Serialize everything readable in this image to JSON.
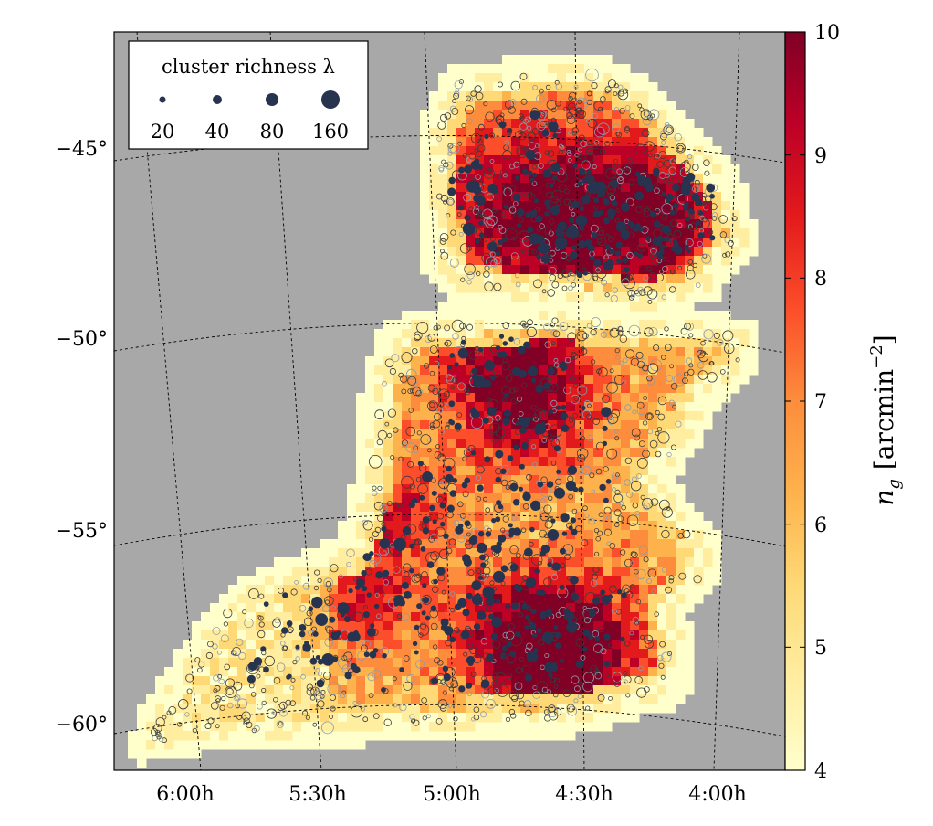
{
  "chart_data": {
    "type": "heatmap",
    "title": "",
    "x_ticks": [
      "6:00h",
      "5:30h",
      "5:00h",
      "4:30h",
      "4:00h"
    ],
    "y_ticks": [
      "−45°",
      "−50°",
      "−55°",
      "−60°"
    ],
    "grid": true,
    "background_color": "#a8a8a8",
    "colorbar": {
      "min": 4,
      "max": 10,
      "ticks": [
        "4",
        "5",
        "6",
        "7",
        "8",
        "9",
        "10"
      ],
      "label_prefix": "n",
      "label_sub": "g",
      "label_unit": "[arcmin",
      "label_sup": "−2",
      "label_close": "]",
      "colormap": [
        "#ffffcc",
        "#ffeda0",
        "#fed976",
        "#feb24c",
        "#fd8d3c",
        "#fc4e2a",
        "#e31a1c",
        "#bd0026",
        "#800026"
      ]
    },
    "legend": {
      "title": "cluster richness λ",
      "placement": "top-left",
      "entries": [
        {
          "label": "20",
          "value": 20
        },
        {
          "label": "40",
          "value": 40
        },
        {
          "label": "80",
          "value": 80
        },
        {
          "label": "160",
          "value": 160
        }
      ]
    },
    "marker_colors": {
      "filled": "#263450",
      "open_dark": "#3b3b3b",
      "open_light": "#8f9aa8"
    }
  }
}
